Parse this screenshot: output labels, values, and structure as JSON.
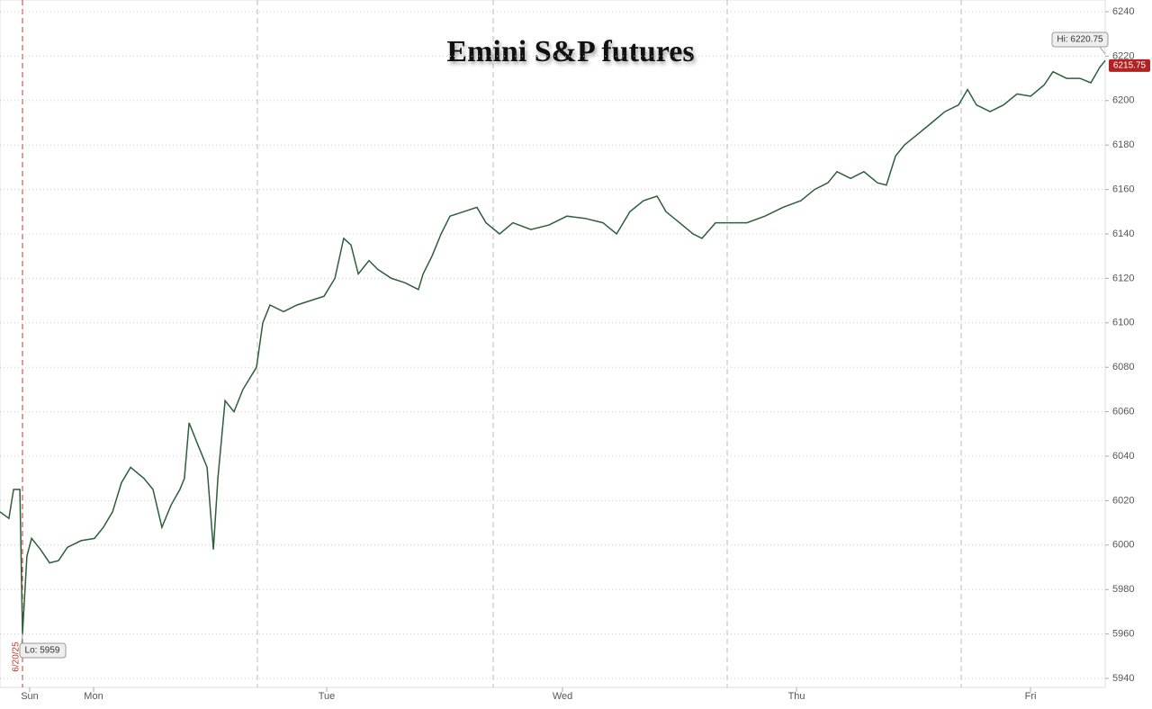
{
  "chart_data": {
    "type": "line",
    "title": "Emini S&P futures",
    "x": [
      0,
      0.038,
      0.058,
      0.085,
      0.096,
      0.115,
      0.135,
      0.173,
      0.212,
      0.25,
      0.288,
      0.346,
      0.404,
      0.442,
      0.481,
      0.519,
      0.558,
      0.615,
      0.654,
      0.692,
      0.731,
      0.769,
      0.788,
      0.808,
      0.846,
      0.885,
      0.912,
      0.931,
      0.962,
      1,
      1.038,
      1.096,
      1.123,
      1.154,
      1.212,
      1.269,
      1.327,
      1.385,
      1.431,
      1.469,
      1.5,
      1.531,
      1.577,
      1.615,
      1.673,
      1.731,
      1.788,
      1.808,
      1.846,
      1.885,
      1.923,
      1.981,
      2.038,
      2.077,
      2.135,
      2.192,
      2.269,
      2.346,
      2.423,
      2.5,
      2.577,
      2.635,
      2.692,
      2.75,
      2.808,
      2.846,
      2.904,
      2.962,
      3,
      3.058,
      3.135,
      3.192,
      3.269,
      3.346,
      3.423,
      3.481,
      3.538,
      3.577,
      3.635,
      3.692,
      3.75,
      3.788,
      3.827,
      3.865,
      3.923,
      3.981,
      4.038,
      4.096,
      4.135,
      4.173,
      4.231,
      4.288,
      4.346,
      4.404,
      4.462,
      4.5,
      4.558,
      4.615,
      4.662,
      4.7,
      4.723
    ],
    "series": [
      {
        "name": "Emini S&P futures",
        "color": "#2e5e3a",
        "values": [
          6015,
          6012,
          6025,
          6025,
          5960,
          5995,
          6003,
          5998,
          5992,
          5993,
          5999,
          6002,
          6003,
          6008,
          6015,
          6028,
          6035,
          6030,
          6025,
          6008,
          6018,
          6025,
          6030,
          6055,
          6045,
          6035,
          5998,
          6030,
          6065,
          6060,
          6070,
          6080,
          6100,
          6108,
          6105,
          6108,
          6110,
          6112,
          6120,
          6138,
          6135,
          6122,
          6128,
          6124,
          6120,
          6118,
          6115,
          6122,
          6130,
          6140,
          6148,
          6150,
          6152,
          6145,
          6140,
          6145,
          6142,
          6144,
          6148,
          6147,
          6145,
          6140,
          6150,
          6155,
          6157,
          6150,
          6145,
          6140,
          6138,
          6145,
          6145,
          6145,
          6148,
          6152,
          6155,
          6160,
          6163,
          6168,
          6165,
          6168,
          6163,
          6162,
          6175,
          6180,
          6185,
          6190,
          6195,
          6198,
          6205,
          6198,
          6195,
          6198,
          6203,
          6202,
          6207,
          6213,
          6210,
          6210,
          6208,
          6215,
          6218
        ]
      }
    ],
    "xlim": [
      0,
      4.723
    ],
    "xticks": [
      {
        "value": 0.127,
        "label": "Sun"
      },
      {
        "value": 0.4,
        "label": "Mon"
      },
      {
        "value": 1.396,
        "label": "Tue"
      },
      {
        "value": 2.404,
        "label": "Wed"
      },
      {
        "value": 3.404,
        "label": "Thu"
      },
      {
        "value": 4.404,
        "label": "Fri"
      }
    ],
    "ylim": [
      5940,
      6240
    ],
    "yticks": [
      5940,
      5960,
      5980,
      6000,
      6020,
      6040,
      6060,
      6080,
      6100,
      6120,
      6140,
      6160,
      6180,
      6200,
      6220,
      6240
    ],
    "grid": true,
    "hi_label": "Hi: 6220.75",
    "lo_label": "Lo: 5959",
    "date_label": "6/20/25",
    "last_price": 6215.75
  }
}
